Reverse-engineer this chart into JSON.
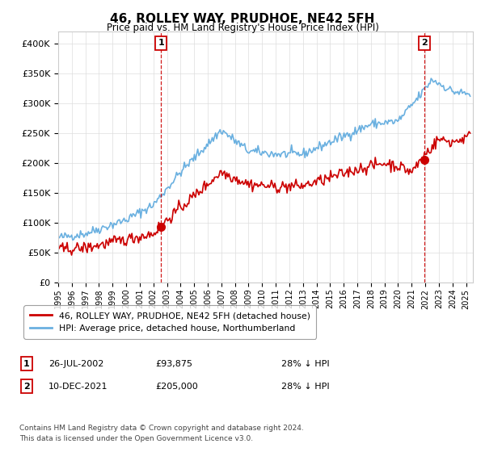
{
  "title": "46, ROLLEY WAY, PRUDHOE, NE42 5FH",
  "subtitle": "Price paid vs. HM Land Registry's House Price Index (HPI)",
  "ylabel_ticks": [
    "£0",
    "£50K",
    "£100K",
    "£150K",
    "£200K",
    "£250K",
    "£300K",
    "£350K",
    "£400K"
  ],
  "ytick_vals": [
    0,
    50000,
    100000,
    150000,
    200000,
    250000,
    300000,
    350000,
    400000
  ],
  "ylim": [
    0,
    420000
  ],
  "xlim_start": 1995.0,
  "xlim_end": 2025.5,
  "hpi_color": "#6ab0e0",
  "price_color": "#cc0000",
  "marker1_x": 2002.56,
  "marker1_y": 93875,
  "marker1_label": "1",
  "marker1_date": "26-JUL-2002",
  "marker1_price": "£93,875",
  "marker1_note": "28% ↓ HPI",
  "marker2_x": 2021.94,
  "marker2_y": 205000,
  "marker2_label": "2",
  "marker2_date": "10-DEC-2021",
  "marker2_price": "£205,000",
  "marker2_note": "28% ↓ HPI",
  "legend_line1": "46, ROLLEY WAY, PRUDHOE, NE42 5FH (detached house)",
  "legend_line2": "HPI: Average price, detached house, Northumberland",
  "footnote1": "Contains HM Land Registry data © Crown copyright and database right 2024.",
  "footnote2": "This data is licensed under the Open Government Licence v3.0.",
  "background_color": "#ffffff",
  "grid_color": "#dddddd"
}
